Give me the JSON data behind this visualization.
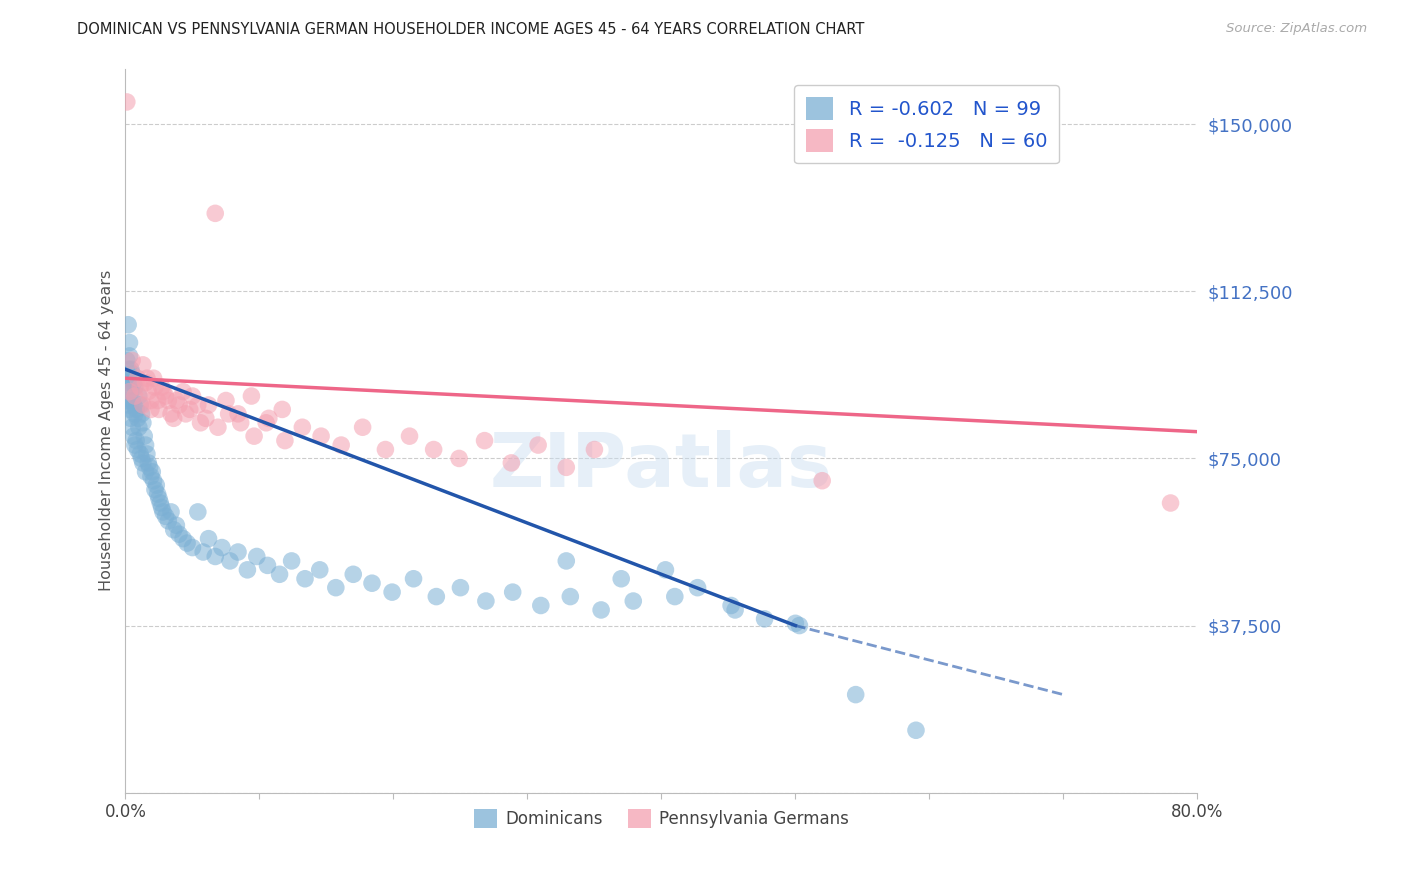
{
  "title": "DOMINICAN VS PENNSYLVANIA GERMAN HOUSEHOLDER INCOME AGES 45 - 64 YEARS CORRELATION CHART",
  "source": "Source: ZipAtlas.com",
  "ylabel": "Householder Income Ages 45 - 64 years",
  "xlim": [
    0.0,
    0.8
  ],
  "ylim": [
    0,
    162500
  ],
  "xticks": [
    0.0,
    0.1,
    0.2,
    0.3,
    0.4,
    0.5,
    0.6,
    0.7,
    0.8
  ],
  "xtick_labels": [
    "0.0%",
    "",
    "",
    "",
    "",
    "",
    "",
    "",
    "80.0%"
  ],
  "ytick_values": [
    0,
    37500,
    75000,
    112500,
    150000
  ],
  "ytick_labels": [
    "",
    "$37,500",
    "$75,000",
    "$112,500",
    "$150,000"
  ],
  "ytick_color": "#4472C4",
  "background_color": "#ffffff",
  "grid_color": "#cccccc",
  "dominican_color": "#7BAFD4",
  "penn_german_color": "#F4A0B0",
  "dominican_line_color": "#2255AA",
  "penn_german_line_color": "#EE6688",
  "R_dominican": -0.602,
  "N_dominican": 99,
  "R_penn_german": -0.125,
  "N_penn_german": 60,
  "legend_label_dominican": "Dominicans",
  "legend_label_penn": "Pennsylvania Germans",
  "watermark": "ZIPatlas",
  "dom_line_x0": 0.0,
  "dom_line_y0": 95000,
  "dom_line_x1": 0.5,
  "dom_line_y1": 37500,
  "dom_line_solid_end": 0.5,
  "dom_line_dash_end": 0.7,
  "dom_line_dash_y1": 22000,
  "penn_line_x0": 0.0,
  "penn_line_y0": 93000,
  "penn_line_x1": 0.8,
  "penn_line_y1": 81000,
  "dominican_x": [
    0.001,
    0.001,
    0.001,
    0.002,
    0.002,
    0.002,
    0.002,
    0.003,
    0.003,
    0.003,
    0.003,
    0.004,
    0.004,
    0.004,
    0.005,
    0.005,
    0.005,
    0.006,
    0.006,
    0.006,
    0.007,
    0.007,
    0.007,
    0.008,
    0.008,
    0.009,
    0.009,
    0.01,
    0.01,
    0.011,
    0.011,
    0.012,
    0.012,
    0.013,
    0.013,
    0.014,
    0.015,
    0.015,
    0.016,
    0.017,
    0.018,
    0.019,
    0.02,
    0.021,
    0.022,
    0.023,
    0.024,
    0.025,
    0.026,
    0.027,
    0.028,
    0.03,
    0.032,
    0.034,
    0.036,
    0.038,
    0.04,
    0.043,
    0.046,
    0.05,
    0.054,
    0.058,
    0.062,
    0.067,
    0.072,
    0.078,
    0.084,
    0.091,
    0.098,
    0.106,
    0.115,
    0.124,
    0.134,
    0.145,
    0.157,
    0.17,
    0.184,
    0.199,
    0.215,
    0.232,
    0.25,
    0.269,
    0.289,
    0.31,
    0.332,
    0.355,
    0.379,
    0.403,
    0.427,
    0.452,
    0.477,
    0.503,
    0.329,
    0.37,
    0.41,
    0.455,
    0.5,
    0.545,
    0.59
  ],
  "dominican_y": [
    92000,
    88000,
    97000,
    105000,
    95000,
    87000,
    93000,
    101000,
    91000,
    86000,
    98000,
    90000,
    84000,
    95000,
    88000,
    82000,
    94000,
    87000,
    80000,
    92000,
    85000,
    78000,
    91000,
    86000,
    79000,
    84000,
    77000,
    89000,
    82000,
    87000,
    76000,
    85000,
    75000,
    83000,
    74000,
    80000,
    78000,
    72000,
    76000,
    74000,
    73000,
    71000,
    72000,
    70000,
    68000,
    69000,
    67000,
    66000,
    65000,
    64000,
    63000,
    62000,
    61000,
    63000,
    59000,
    60000,
    58000,
    57000,
    56000,
    55000,
    63000,
    54000,
    57000,
    53000,
    55000,
    52000,
    54000,
    50000,
    53000,
    51000,
    49000,
    52000,
    48000,
    50000,
    46000,
    49000,
    47000,
    45000,
    48000,
    44000,
    46000,
    43000,
    45000,
    42000,
    44000,
    41000,
    43000,
    50000,
    46000,
    42000,
    39000,
    37500,
    52000,
    48000,
    44000,
    41000,
    38000,
    22000,
    14000
  ],
  "penn_german_x": [
    0.001,
    0.003,
    0.005,
    0.007,
    0.009,
    0.011,
    0.013,
    0.015,
    0.017,
    0.019,
    0.021,
    0.024,
    0.027,
    0.03,
    0.034,
    0.038,
    0.043,
    0.048,
    0.054,
    0.06,
    0.067,
    0.075,
    0.084,
    0.094,
    0.105,
    0.117,
    0.013,
    0.016,
    0.019,
    0.022,
    0.025,
    0.028,
    0.032,
    0.036,
    0.04,
    0.045,
    0.05,
    0.056,
    0.062,
    0.069,
    0.077,
    0.086,
    0.096,
    0.107,
    0.119,
    0.132,
    0.146,
    0.161,
    0.177,
    0.194,
    0.212,
    0.23,
    0.249,
    0.268,
    0.288,
    0.308,
    0.329,
    0.35,
    0.52,
    0.78
  ],
  "penn_german_y": [
    155000,
    90000,
    97000,
    89000,
    93000,
    91000,
    87000,
    92000,
    90000,
    86000,
    93000,
    88000,
    91000,
    89000,
    85000,
    88000,
    90000,
    86000,
    87000,
    84000,
    130000,
    88000,
    85000,
    89000,
    83000,
    86000,
    96000,
    93000,
    88000,
    91000,
    86000,
    90000,
    88000,
    84000,
    87000,
    85000,
    89000,
    83000,
    87000,
    82000,
    85000,
    83000,
    80000,
    84000,
    79000,
    82000,
    80000,
    78000,
    82000,
    77000,
    80000,
    77000,
    75000,
    79000,
    74000,
    78000,
    73000,
    77000,
    70000,
    65000
  ]
}
